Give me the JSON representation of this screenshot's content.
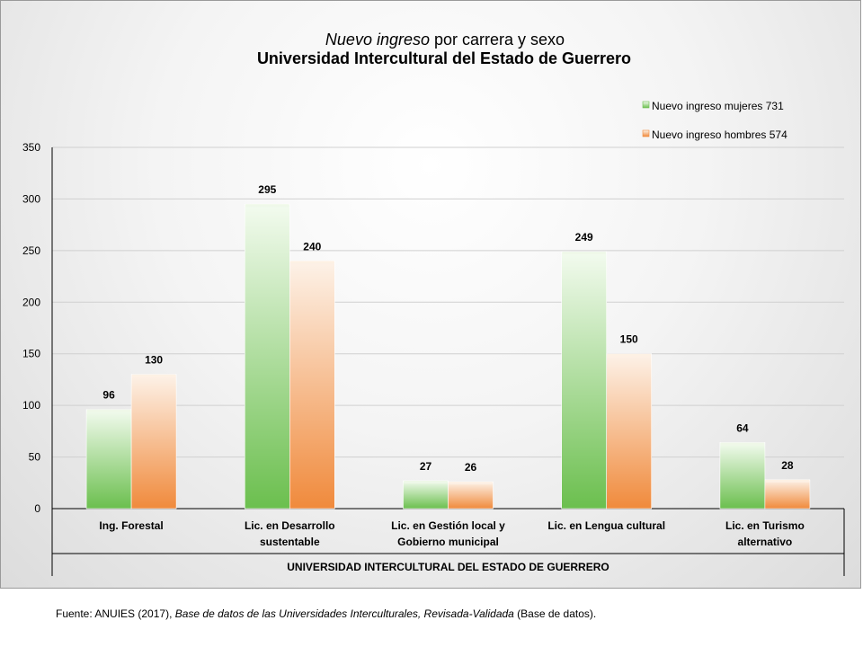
{
  "title_italic": "Nuevo ingreso",
  "title_rest": " por carrera y sexo",
  "subtitle": "Universidad Intercultural del Estado de  Guerrero",
  "chart_data": {
    "type": "bar",
    "categories": [
      [
        "Ing. Forestal"
      ],
      [
        "Lic. en Desarrollo",
        "sustentable"
      ],
      [
        "Lic. en Gestión local y",
        "Gobierno municipal"
      ],
      [
        "Lic. en Lengua cultural"
      ],
      [
        "Lic.  en Turismo",
        "alternativo"
      ]
    ],
    "series": [
      {
        "name": "Nuevo ingreso mujeres  731",
        "values": [
          96,
          295,
          27,
          249,
          64
        ],
        "color_light": "#eef8e8",
        "color_dark": "#6bbf4e"
      },
      {
        "name": "Nuevo ingreso hombres  574",
        "values": [
          130,
          240,
          26,
          150,
          28
        ],
        "color_light": "#fdf0e4",
        "color_dark": "#f08a3c"
      }
    ],
    "group_label": "UNIVERSIDAD INTERCULTURAL DEL ESTADO DE GUERRERO",
    "ylim": [
      0,
      350
    ],
    "yticks": [
      0,
      50,
      100,
      150,
      200,
      250,
      300,
      350
    ],
    "grid": true,
    "legend_position": "top-right"
  },
  "source": {
    "prefix": "Fuente: ANUIES (2017),  ",
    "italic": "Base de datos de las Universidades  Interculturales, Revisada-Validada",
    "suffix": "  (Base de datos)."
  }
}
